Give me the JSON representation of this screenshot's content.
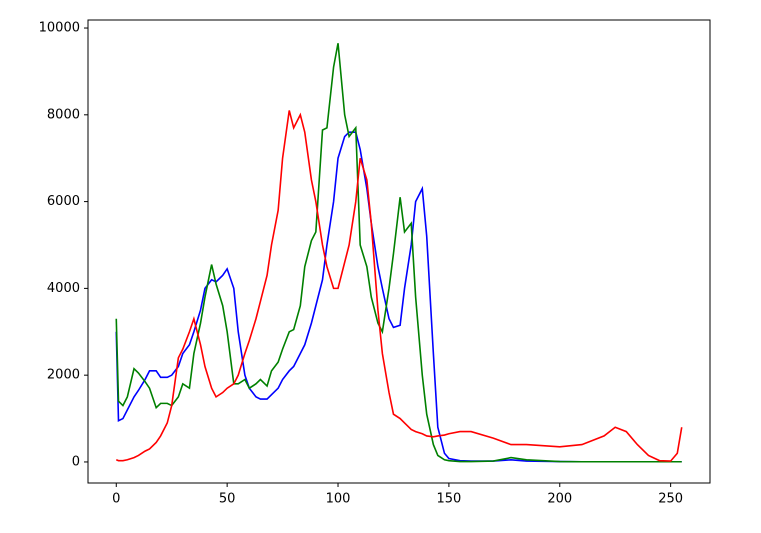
{
  "chart_data": {
    "type": "line",
    "x": [
      0,
      1,
      3,
      5,
      8,
      10,
      13,
      15,
      18,
      20,
      23,
      25,
      28,
      30,
      33,
      35,
      38,
      40,
      43,
      45,
      48,
      50,
      53,
      55,
      58,
      60,
      63,
      65,
      68,
      70,
      73,
      75,
      78,
      80,
      83,
      85,
      88,
      90,
      93,
      95,
      98,
      100,
      103,
      105,
      108,
      110,
      113,
      115,
      118,
      120,
      123,
      125,
      128,
      130,
      133,
      135,
      138,
      140,
      143,
      145,
      148,
      150,
      155,
      160,
      170,
      178,
      185,
      200,
      210,
      220,
      225,
      230,
      235,
      240,
      245,
      250,
      253,
      255
    ],
    "series": [
      {
        "color": "#0000ff",
        "values": [
          3000,
          950,
          1000,
          1200,
          1500,
          1650,
          1900,
          2100,
          2100,
          1950,
          1950,
          2000,
          2200,
          2500,
          2700,
          3000,
          3500,
          4000,
          4200,
          4150,
          4300,
          4450,
          4000,
          3000,
          2000,
          1700,
          1500,
          1450,
          1450,
          1550,
          1700,
          1900,
          2100,
          2200,
          2500,
          2700,
          3200,
          3600,
          4200,
          5000,
          6000,
          7000,
          7500,
          7600,
          7600,
          7200,
          6300,
          5500,
          4500,
          4000,
          3300,
          3100,
          3150,
          4000,
          5000,
          6000,
          6300,
          5200,
          2500,
          800,
          200,
          80,
          30,
          20,
          20,
          50,
          20,
          10,
          5,
          5,
          5,
          5,
          5,
          5,
          5,
          5,
          5,
          5
        ]
      },
      {
        "color": "#008000",
        "values": [
          3300,
          1400,
          1300,
          1500,
          2150,
          2050,
          1850,
          1700,
          1250,
          1350,
          1350,
          1300,
          1500,
          1800,
          1700,
          2500,
          3200,
          3800,
          4550,
          4100,
          3600,
          3000,
          1800,
          1800,
          1900,
          1700,
          1800,
          1900,
          1750,
          2100,
          2300,
          2600,
          3000,
          3050,
          3600,
          4500,
          5100,
          5300,
          7650,
          7700,
          9100,
          9650,
          8000,
          7500,
          7700,
          5000,
          4500,
          3800,
          3200,
          3000,
          4000,
          4800,
          6100,
          5300,
          5500,
          3800,
          2000,
          1100,
          400,
          150,
          50,
          30,
          10,
          10,
          20,
          100,
          50,
          10,
          5,
          5,
          5,
          5,
          5,
          5,
          5,
          5,
          5,
          5
        ]
      },
      {
        "color": "#ff0000",
        "values": [
          50,
          30,
          30,
          50,
          100,
          150,
          250,
          300,
          450,
          600,
          900,
          1300,
          2400,
          2600,
          3000,
          3300,
          2700,
          2200,
          1700,
          1500,
          1600,
          1700,
          1800,
          2000,
          2500,
          2800,
          3300,
          3700,
          4300,
          5000,
          5800,
          7000,
          8100,
          7700,
          8000,
          7600,
          6500,
          6000,
          5000,
          4500,
          4000,
          4000,
          4600,
          5000,
          6000,
          7000,
          6500,
          5500,
          3500,
          2500,
          1600,
          1100,
          1000,
          900,
          750,
          700,
          650,
          600,
          580,
          600,
          620,
          650,
          700,
          700,
          550,
          400,
          400,
          350,
          400,
          600,
          800,
          700,
          400,
          150,
          30,
          20,
          200,
          800
        ]
      }
    ],
    "xlim": [
      -12.75,
      267.75
    ],
    "xticks": [
      0,
      50,
      100,
      150,
      200,
      250
    ],
    "ylim": [
      -485,
      10185
    ],
    "yticks": [
      0,
      2000,
      4000,
      6000,
      8000,
      10000
    ],
    "grid": false
  }
}
